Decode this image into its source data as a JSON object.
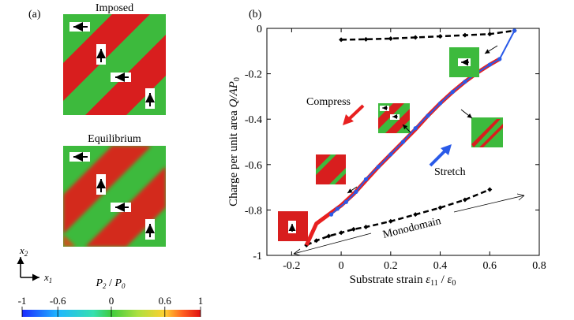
{
  "panel_a": {
    "label": "(a)",
    "top_title": "Imposed",
    "bottom_title": "Equilibrium",
    "axis_x": "x",
    "axis_x_sub": "1",
    "axis_y": "x",
    "axis_y_sub": "2",
    "colorbar": {
      "label_main": "P",
      "label_sub": "2",
      "label_sep": " / ",
      "label_den": "P",
      "label_den_sub": "0",
      "ticks": [
        "-1",
        "-0.6",
        "0",
        "0.6",
        "1"
      ],
      "tick_values": [
        -1,
        -0.6,
        0,
        0.6,
        1
      ],
      "colors": [
        "#1a2aff",
        "#1fb7ff",
        "#35e0b0",
        "#3fcc3f",
        "#aee040",
        "#ffd030",
        "#ff6020",
        "#e01010"
      ]
    }
  },
  "panel_b": {
    "label": "(b)",
    "labels": {
      "compress": "Compress",
      "stretch": "Stretch",
      "monodomain": "Monodomain"
    },
    "colors": {
      "compress": "#e82020",
      "stretch": "#2a5ae8",
      "dashed": "#000000",
      "domain_red": "#d81e1e",
      "domain_green": "#3dba3d"
    }
  },
  "chart_data": {
    "type": "line",
    "xlabel": "Substrate strain ε11 / ε0",
    "xlabel_parts": {
      "main": "Substrate strain ",
      "var": "ε",
      "sub": "11",
      "sep": " / ",
      "den": "ε",
      "den_sub": "0"
    },
    "ylabel": "Charge per unit area Q/AP0",
    "ylabel_parts": {
      "main": "Charge per unit area ",
      "var": "Q/AP",
      "sub": "0"
    },
    "xlim": [
      -0.3,
      0.8
    ],
    "ylim": [
      -1.0,
      0.0
    ],
    "xticks": [
      -0.2,
      0,
      0.2,
      0.4,
      0.6,
      0.8
    ],
    "xtick_labels": [
      "-0.2",
      "0",
      "0.2",
      "0.4",
      "0.6",
      "0.8"
    ],
    "yticks": [
      -1,
      -0.8,
      -0.6,
      -0.4,
      -0.2,
      0
    ],
    "ytick_labels": [
      "-1",
      "-0.8",
      "-0.6",
      "-0.4",
      "-0.2",
      "0"
    ],
    "grid": false,
    "series": [
      {
        "style": "compress",
        "color": "#e82020",
        "x": [
          -0.14,
          -0.1,
          -0.05,
          0.0,
          0.05,
          0.1,
          0.15,
          0.2,
          0.25,
          0.3,
          0.35,
          0.4,
          0.45,
          0.5,
          0.55,
          0.6,
          0.64
        ],
        "y": [
          -0.955,
          -0.86,
          -0.82,
          -0.78,
          -0.73,
          -0.67,
          -0.61,
          -0.555,
          -0.5,
          -0.445,
          -0.385,
          -0.33,
          -0.28,
          -0.235,
          -0.195,
          -0.16,
          -0.135
        ]
      },
      {
        "style": "stretch",
        "color": "#2a5ae8",
        "x": [
          -0.04,
          -0.015,
          0.02,
          0.06,
          0.1,
          0.15,
          0.2,
          0.25,
          0.3,
          0.35,
          0.4,
          0.45,
          0.5,
          0.55,
          0.6,
          0.64,
          0.7
        ],
        "y": [
          -0.82,
          -0.795,
          -0.765,
          -0.72,
          -0.665,
          -0.61,
          -0.555,
          -0.5,
          -0.44,
          -0.385,
          -0.33,
          -0.28,
          -0.235,
          -0.195,
          -0.16,
          -0.135,
          -0.01
        ]
      },
      {
        "style": "dashed-top",
        "color": "#000000",
        "x": [
          0.0,
          0.1,
          0.2,
          0.3,
          0.4,
          0.5,
          0.6,
          0.7
        ],
        "y": [
          -0.05,
          -0.048,
          -0.045,
          -0.04,
          -0.035,
          -0.03,
          -0.025,
          -0.01
        ]
      },
      {
        "style": "dashed-bottom",
        "color": "#000000",
        "x": [
          -0.14,
          -0.1,
          -0.05,
          0.0,
          0.05,
          0.1,
          0.2,
          0.3,
          0.4,
          0.5,
          0.6
        ],
        "y": [
          -0.955,
          -0.935,
          -0.915,
          -0.9,
          -0.885,
          -0.875,
          -0.85,
          -0.82,
          -0.79,
          -0.755,
          -0.71
        ]
      }
    ]
  }
}
